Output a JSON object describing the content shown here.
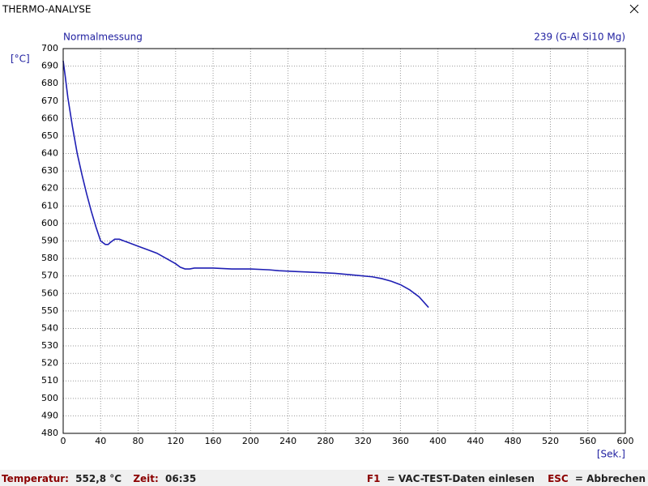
{
  "window": {
    "title": "THERMO-ANALYSE"
  },
  "chart_data": {
    "type": "line",
    "subtitle": "Normalmessung",
    "annotation": "239   (G-Al Si10 Mg)",
    "ylabel": "[°C]",
    "xlabel": "[Sek.]",
    "color": "#1f1fb4",
    "x": [
      0,
      2,
      5,
      10,
      15,
      20,
      25,
      30,
      35,
      40,
      45,
      48,
      50,
      55,
      60,
      65,
      70,
      80,
      90,
      100,
      110,
      120,
      125,
      130,
      135,
      140,
      160,
      180,
      200,
      220,
      230,
      250,
      270,
      290,
      310,
      330,
      340,
      350,
      360,
      370,
      380,
      390
    ],
    "values": [
      693,
      685,
      672,
      655,
      640,
      628,
      617,
      607,
      598,
      590,
      588,
      588,
      589,
      591,
      591,
      590,
      589,
      587,
      585,
      583,
      580,
      577,
      575,
      574,
      574,
      574.5,
      574.5,
      574,
      574,
      573.5,
      573,
      572.5,
      572,
      571.5,
      570.5,
      569.5,
      568.5,
      567,
      565,
      562,
      558,
      552
    ],
    "xlim": [
      0,
      600
    ],
    "xticks": [
      0,
      40,
      80,
      120,
      160,
      200,
      240,
      280,
      320,
      360,
      400,
      440,
      480,
      520,
      560,
      600
    ],
    "ylim": [
      480,
      700
    ],
    "yticks": [
      480,
      490,
      500,
      510,
      520,
      530,
      540,
      550,
      560,
      570,
      580,
      590,
      600,
      610,
      620,
      630,
      640,
      650,
      660,
      670,
      680,
      690,
      700
    ],
    "grid": true
  },
  "status": {
    "temperature_label": "Temperatur:",
    "temperature": "552,8 °C",
    "time_label": "Zeit:",
    "time": "06:35",
    "load_key": "F1",
    "load_text": "= VAC-TEST-Daten einlesen",
    "abort_key": "ESC",
    "abort_text": "= Abbrechen"
  }
}
